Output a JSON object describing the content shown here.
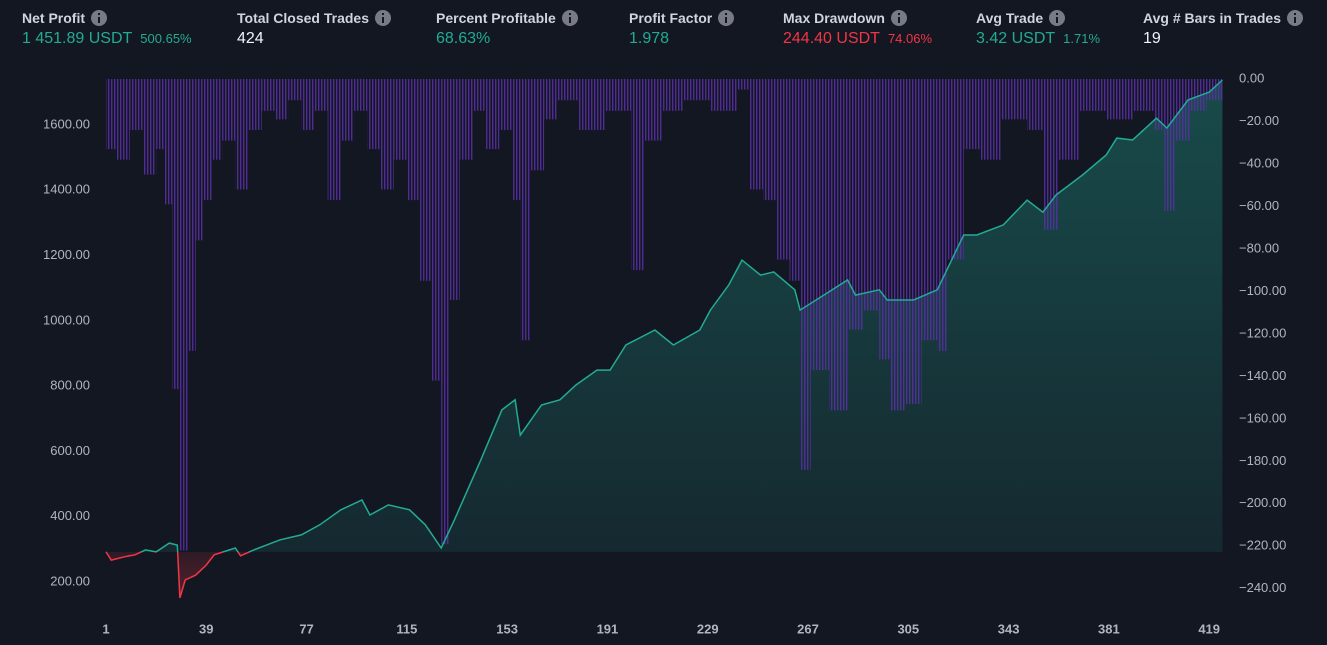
{
  "stats": [
    {
      "label": "Net Profit",
      "value": "1 451.89 USDT",
      "percent": "500.65%",
      "color": "#22ab94"
    },
    {
      "label": "Total Closed Trades",
      "value": "424",
      "color": "#f0f3fa"
    },
    {
      "label": "Percent Profitable",
      "value": "68.63%",
      "color": "#22ab94"
    },
    {
      "label": "Profit Factor",
      "value": "1.978",
      "color": "#22ab94"
    },
    {
      "label": "Max Drawdown",
      "value": "244.40 USDT",
      "percent": "74.06%",
      "color": "#f23645"
    },
    {
      "label": "Avg Trade",
      "value": "3.42 USDT",
      "percent": "1.71%",
      "color": "#22ab94"
    },
    {
      "label": "Avg # Bars in Trades",
      "value": "19",
      "color": "#f0f3fa"
    }
  ],
  "chart_data": {
    "type": "line",
    "xlim": [
      1,
      425
    ],
    "xticks": [
      1,
      39,
      77,
      115,
      153,
      191,
      229,
      267,
      305,
      343,
      381,
      419
    ],
    "ylim": [
      114,
      1741
    ],
    "yticks": [
      {
        "value": 200,
        "label": "200.00"
      },
      {
        "value": 400,
        "label": "400.00"
      },
      {
        "value": 600,
        "label": "600.00"
      },
      {
        "value": 800,
        "label": "800.00"
      },
      {
        "value": 1000,
        "label": "1000.00"
      },
      {
        "value": 1200,
        "label": "1200.00"
      },
      {
        "value": 1400,
        "label": "1400.00"
      },
      {
        "value": 1600,
        "label": "1600.00"
      }
    ],
    "y2lim": [
      -250,
      0
    ],
    "y2ticks": [
      {
        "value": 0,
        "label": "0.00"
      },
      {
        "value": -20,
        "label": "−20.00"
      },
      {
        "value": -40,
        "label": "−40.00"
      },
      {
        "value": -60,
        "label": "−60.00"
      },
      {
        "value": -80,
        "label": "−80.00"
      },
      {
        "value": -100,
        "label": "−100.00"
      },
      {
        "value": -120,
        "label": "−120.00"
      },
      {
        "value": -140,
        "label": "−140.00"
      },
      {
        "value": -160,
        "label": "−160.00"
      },
      {
        "value": -180,
        "label": "−180.00"
      },
      {
        "value": -200,
        "label": "−200.00"
      },
      {
        "value": -220,
        "label": "−220.00"
      },
      {
        "value": -240,
        "label": "−240.00"
      }
    ],
    "grid": false,
    "series": [
      {
        "type": "line",
        "color": "#22ab94",
        "negative_color": "#f23645",
        "x": [
          1,
          3,
          8,
          12,
          16,
          20,
          25,
          28,
          29,
          31,
          35,
          39,
          42,
          50,
          52,
          57,
          67,
          75,
          82,
          90,
          98,
          101,
          108,
          116,
          122,
          128,
          133,
          143,
          151,
          156,
          158,
          166,
          173,
          179,
          187,
          192,
          198,
          209,
          216,
          226,
          230,
          237,
          242,
          249,
          254,
          262,
          264,
          273,
          282,
          285,
          294,
          297,
          307,
          316,
          326,
          331,
          341,
          350,
          356,
          361,
          371,
          380,
          384,
          390,
          399,
          403,
          411,
          419,
          424
        ],
        "values": [
          292,
          267,
          277,
          283,
          298,
          292,
          319,
          313,
          151,
          206,
          221,
          252,
          283,
          304,
          280,
          298,
          329,
          344,
          375,
          421,
          451,
          405,
          436,
          421,
          375,
          304,
          390,
          574,
          727,
          758,
          650,
          742,
          758,
          803,
          849,
          849,
          926,
          972,
          926,
          972,
          1033,
          1110,
          1186,
          1140,
          1150,
          1095,
          1033,
          1079,
          1125,
          1079,
          1095,
          1064,
          1064,
          1095,
          1263,
          1263,
          1294,
          1370,
          1333,
          1386,
          1447,
          1508,
          1560,
          1554,
          1621,
          1591,
          1677,
          1701,
          1738
        ]
      },
      {
        "type": "bar",
        "axis": "y2",
        "color": "#5b2fa8",
        "x": [
          1,
          5,
          10,
          15,
          20,
          23,
          26,
          29,
          32,
          35,
          38,
          41,
          45,
          50,
          55,
          60,
          65,
          70,
          75,
          80,
          85,
          90,
          95,
          100,
          105,
          110,
          115,
          120,
          124,
          128,
          131,
          135,
          140,
          145,
          150,
          155,
          158,
          162,
          167,
          172,
          180,
          190,
          200,
          205,
          212,
          220,
          230,
          240,
          245,
          250,
          255,
          260,
          264,
          268,
          275,
          282,
          288,
          294,
          298,
          304,
          310,
          316,
          320,
          326,
          332,
          340,
          350,
          356,
          362,
          370,
          380,
          390,
          398,
          402,
          406,
          412,
          418,
          424
        ],
        "values": [
          -33,
          -38,
          -24,
          -45,
          -33,
          -59,
          -146,
          -222,
          -128,
          -76,
          -57,
          -38,
          -29,
          -52,
          -24,
          -15,
          -19,
          -10,
          -24,
          -15,
          -57,
          -29,
          -15,
          -33,
          -52,
          -38,
          -57,
          -95,
          -142,
          -219,
          -104,
          -38,
          -15,
          -33,
          -24,
          -57,
          -123,
          -43,
          -19,
          -10,
          -24,
          -15,
          -90,
          -29,
          -15,
          -10,
          -15,
          -5,
          -52,
          -57,
          -85,
          -95,
          -184,
          -137,
          -156,
          -118,
          -109,
          -132,
          -156,
          -153,
          -123,
          -128,
          -85,
          -33,
          -38,
          -19,
          -24,
          -71,
          -38,
          -15,
          -19,
          -15,
          -24,
          -62,
          -29,
          -15,
          -10,
          0
        ]
      }
    ]
  }
}
